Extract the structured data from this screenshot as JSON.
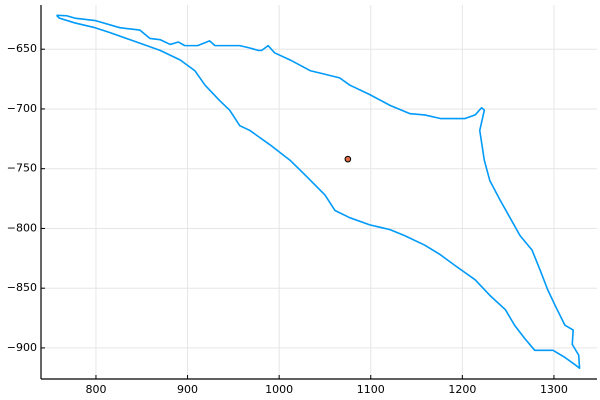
{
  "chart_data": {
    "type": "line",
    "series": [
      {
        "type": "line",
        "color": "#009af9",
        "x": [
          757,
          768,
          777,
          799,
          826,
          848,
          859,
          870,
          881,
          890,
          897,
          911,
          924,
          930,
          941,
          957,
          968,
          977,
          981,
          988,
          995,
          1012,
          1034,
          1045,
          1066,
          1077,
          1099,
          1121,
          1143,
          1159,
          1176,
          1203,
          1214,
          1221,
          1224,
          1219,
          1224,
          1230,
          1241,
          1252,
          1263,
          1276,
          1285,
          1293,
          1301,
          1312,
          1321,
          1320,
          1327,
          1328,
          1323,
          1312,
          1299,
          1279,
          1268,
          1257,
          1247,
          1230,
          1214,
          1192,
          1176,
          1159,
          1137,
          1121,
          1099,
          1077,
          1061,
          1050,
          1028,
          1012,
          990,
          968,
          957,
          946,
          935,
          919,
          908,
          892,
          870,
          837,
          815,
          799,
          777,
          760,
          757
        ],
        "values": [
          -621.6,
          -622,
          -624,
          -626,
          -632,
          -634,
          -641,
          -642,
          -646,
          -644,
          -647,
          -647,
          -643,
          -647,
          -647,
          -647,
          -649,
          -651,
          -651,
          -647,
          -653,
          -659,
          -668,
          -670,
          -674,
          -680,
          -688,
          -697,
          -704,
          -705,
          -708,
          -708,
          -705,
          -699,
          -701,
          -718,
          -743,
          -760,
          -776,
          -791,
          -806,
          -818,
          -835,
          -851,
          -864,
          -881,
          -885,
          -897,
          -906,
          -917,
          -914,
          -908,
          -902,
          -902,
          -892,
          -881,
          -868,
          -856,
          -843,
          -831,
          -822,
          -814,
          -806,
          -801,
          -797,
          -791,
          -785,
          -772,
          -755,
          -743,
          -730,
          -718,
          -714,
          -701,
          -693,
          -680,
          -668,
          -659,
          -651,
          -642,
          -636,
          -632,
          -628,
          -624,
          -621.6
        ]
      },
      {
        "type": "scatter",
        "color": "#e26f46",
        "x": [
          1075
        ],
        "values": [
          -742
        ]
      }
    ],
    "xlim": [
      740,
      1347
    ],
    "ylim": [
      -926,
      -613
    ],
    "xticks": [
      800,
      900,
      1000,
      1100,
      1200,
      1300
    ],
    "yticks": [
      {
        "value": -900,
        "label": "−900"
      },
      {
        "value": -850,
        "label": "−850"
      },
      {
        "value": -800,
        "label": "−800"
      },
      {
        "value": -750,
        "label": "−750"
      },
      {
        "value": -700,
        "label": "−700"
      },
      {
        "value": -650,
        "label": "−650"
      }
    ],
    "grid": true
  }
}
